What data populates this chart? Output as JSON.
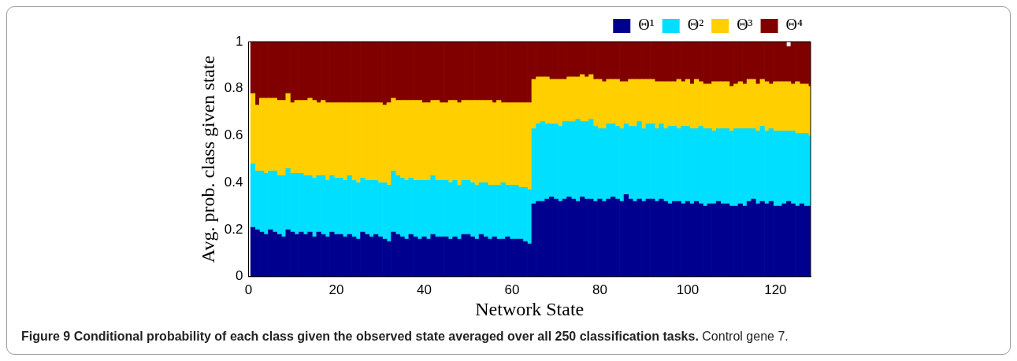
{
  "chart_data": {
    "type": "bar",
    "stacked": true,
    "xlabel": "Network State",
    "ylabel": "Avg. prob. class given state",
    "annotations": [
      "Figure 9 Conditional probability of each class given the observed state averaged over all 250 classification tasks.",
      "Control gene 7."
    ],
    "x": [
      1,
      2,
      3,
      4,
      5,
      6,
      7,
      8,
      9,
      10,
      11,
      12,
      13,
      14,
      15,
      16,
      17,
      18,
      19,
      20,
      21,
      22,
      23,
      24,
      25,
      26,
      27,
      28,
      29,
      30,
      31,
      32,
      33,
      34,
      35,
      36,
      37,
      38,
      39,
      40,
      41,
      42,
      43,
      44,
      45,
      46,
      47,
      48,
      49,
      50,
      51,
      52,
      53,
      54,
      55,
      56,
      57,
      58,
      59,
      60,
      61,
      62,
      63,
      64,
      65,
      66,
      67,
      68,
      69,
      70,
      71,
      72,
      73,
      74,
      75,
      76,
      77,
      78,
      79,
      80,
      81,
      82,
      83,
      84,
      85,
      86,
      87,
      88,
      89,
      90,
      91,
      92,
      93,
      94,
      95,
      96,
      97,
      98,
      99,
      100,
      101,
      102,
      103,
      104,
      105,
      106,
      107,
      108,
      109,
      110,
      111,
      112,
      113,
      114,
      115,
      116,
      117,
      118,
      119,
      120,
      121,
      122,
      123,
      124,
      125,
      126,
      127,
      128
    ],
    "xlim": [
      0,
      128
    ],
    "xticks": [
      0,
      20,
      40,
      60,
      80,
      100,
      120
    ],
    "ylim": [
      0,
      1
    ],
    "yticks": [
      0,
      0.2,
      0.4,
      0.6,
      0.8,
      1
    ],
    "grid": false,
    "legend": "top right",
    "series": [
      {
        "name": "Θ¹",
        "color": "#00008f",
        "values": [
          0.21,
          0.2,
          0.19,
          0.18,
          0.2,
          0.19,
          0.18,
          0.17,
          0.2,
          0.19,
          0.18,
          0.19,
          0.18,
          0.19,
          0.17,
          0.19,
          0.18,
          0.17,
          0.19,
          0.18,
          0.18,
          0.17,
          0.18,
          0.17,
          0.16,
          0.19,
          0.18,
          0.17,
          0.18,
          0.17,
          0.16,
          0.15,
          0.19,
          0.18,
          0.17,
          0.16,
          0.18,
          0.17,
          0.16,
          0.17,
          0.16,
          0.18,
          0.17,
          0.17,
          0.17,
          0.16,
          0.17,
          0.16,
          0.18,
          0.18,
          0.17,
          0.16,
          0.18,
          0.17,
          0.16,
          0.17,
          0.16,
          0.16,
          0.17,
          0.16,
          0.16,
          0.16,
          0.15,
          0.14,
          0.31,
          0.32,
          0.32,
          0.33,
          0.34,
          0.33,
          0.32,
          0.33,
          0.34,
          0.33,
          0.32,
          0.34,
          0.33,
          0.33,
          0.32,
          0.33,
          0.32,
          0.33,
          0.34,
          0.33,
          0.32,
          0.35,
          0.33,
          0.32,
          0.33,
          0.32,
          0.33,
          0.33,
          0.32,
          0.33,
          0.32,
          0.31,
          0.32,
          0.32,
          0.31,
          0.32,
          0.31,
          0.32,
          0.31,
          0.3,
          0.31,
          0.31,
          0.32,
          0.31,
          0.31,
          0.3,
          0.3,
          0.31,
          0.3,
          0.32,
          0.33,
          0.31,
          0.32,
          0.31,
          0.32,
          0.3,
          0.3,
          0.31,
          0.32,
          0.31,
          0.3,
          0.31,
          0.3,
          0.3
        ]
      },
      {
        "name": "Θ²",
        "color": "#00dfff",
        "values": [
          0.27,
          0.25,
          0.26,
          0.26,
          0.25,
          0.26,
          0.25,
          0.26,
          0.26,
          0.25,
          0.26,
          0.25,
          0.25,
          0.24,
          0.25,
          0.24,
          0.25,
          0.24,
          0.24,
          0.24,
          0.24,
          0.24,
          0.25,
          0.24,
          0.24,
          0.23,
          0.23,
          0.24,
          0.23,
          0.23,
          0.24,
          0.24,
          0.26,
          0.25,
          0.25,
          0.25,
          0.24,
          0.24,
          0.25,
          0.24,
          0.25,
          0.25,
          0.24,
          0.24,
          0.24,
          0.24,
          0.24,
          0.23,
          0.23,
          0.23,
          0.23,
          0.23,
          0.22,
          0.23,
          0.23,
          0.22,
          0.23,
          0.24,
          0.22,
          0.23,
          0.23,
          0.22,
          0.23,
          0.23,
          0.32,
          0.33,
          0.34,
          0.32,
          0.31,
          0.32,
          0.32,
          0.33,
          0.32,
          0.33,
          0.35,
          0.32,
          0.33,
          0.34,
          0.32,
          0.3,
          0.31,
          0.32,
          0.31,
          0.31,
          0.31,
          0.3,
          0.31,
          0.32,
          0.33,
          0.31,
          0.32,
          0.32,
          0.31,
          0.32,
          0.31,
          0.33,
          0.32,
          0.31,
          0.33,
          0.32,
          0.32,
          0.31,
          0.33,
          0.33,
          0.32,
          0.31,
          0.31,
          0.32,
          0.32,
          0.32,
          0.33,
          0.32,
          0.33,
          0.31,
          0.3,
          0.31,
          0.32,
          0.31,
          0.31,
          0.32,
          0.32,
          0.31,
          0.3,
          0.31,
          0.31,
          0.3,
          0.31,
          0.3
        ]
      },
      {
        "name": "Θ³",
        "color": "#ffcf00",
        "values": [
          0.3,
          0.28,
          0.31,
          0.32,
          0.31,
          0.31,
          0.32,
          0.32,
          0.32,
          0.3,
          0.31,
          0.31,
          0.32,
          0.33,
          0.33,
          0.31,
          0.32,
          0.33,
          0.31,
          0.32,
          0.32,
          0.33,
          0.31,
          0.33,
          0.34,
          0.32,
          0.33,
          0.33,
          0.33,
          0.34,
          0.33,
          0.35,
          0.31,
          0.32,
          0.33,
          0.34,
          0.33,
          0.34,
          0.34,
          0.33,
          0.33,
          0.32,
          0.34,
          0.33,
          0.33,
          0.35,
          0.34,
          0.35,
          0.34,
          0.34,
          0.35,
          0.36,
          0.35,
          0.35,
          0.36,
          0.35,
          0.36,
          0.34,
          0.35,
          0.35,
          0.35,
          0.36,
          0.36,
          0.37,
          0.21,
          0.2,
          0.19,
          0.2,
          0.19,
          0.19,
          0.2,
          0.18,
          0.19,
          0.19,
          0.18,
          0.2,
          0.19,
          0.19,
          0.2,
          0.21,
          0.2,
          0.19,
          0.19,
          0.2,
          0.2,
          0.18,
          0.2,
          0.2,
          0.18,
          0.21,
          0.19,
          0.19,
          0.2,
          0.18,
          0.2,
          0.19,
          0.19,
          0.21,
          0.19,
          0.2,
          0.19,
          0.21,
          0.19,
          0.19,
          0.19,
          0.21,
          0.2,
          0.2,
          0.2,
          0.19,
          0.19,
          0.2,
          0.19,
          0.21,
          0.21,
          0.2,
          0.2,
          0.21,
          0.19,
          0.21,
          0.21,
          0.21,
          0.21,
          0.2,
          0.22,
          0.21,
          0.21,
          0.21
        ]
      },
      {
        "name": "Θ⁴",
        "color": "#800000",
        "values": [
          0.22,
          0.27,
          0.24,
          0.24,
          0.24,
          0.24,
          0.25,
          0.25,
          0.22,
          0.26,
          0.25,
          0.25,
          0.25,
          0.24,
          0.25,
          0.26,
          0.25,
          0.26,
          0.26,
          0.26,
          0.26,
          0.26,
          0.26,
          0.26,
          0.26,
          0.26,
          0.26,
          0.26,
          0.26,
          0.26,
          0.27,
          0.26,
          0.24,
          0.25,
          0.25,
          0.25,
          0.25,
          0.25,
          0.25,
          0.26,
          0.26,
          0.25,
          0.25,
          0.26,
          0.26,
          0.25,
          0.25,
          0.26,
          0.25,
          0.25,
          0.25,
          0.25,
          0.25,
          0.25,
          0.25,
          0.26,
          0.25,
          0.26,
          0.26,
          0.26,
          0.26,
          0.26,
          0.26,
          0.26,
          0.16,
          0.15,
          0.15,
          0.15,
          0.16,
          0.16,
          0.16,
          0.16,
          0.15,
          0.15,
          0.15,
          0.14,
          0.15,
          0.14,
          0.16,
          0.16,
          0.17,
          0.16,
          0.16,
          0.16,
          0.17,
          0.17,
          0.16,
          0.16,
          0.16,
          0.16,
          0.16,
          0.16,
          0.17,
          0.17,
          0.17,
          0.17,
          0.17,
          0.16,
          0.17,
          0.16,
          0.18,
          0.16,
          0.17,
          0.18,
          0.18,
          0.17,
          0.17,
          0.17,
          0.17,
          0.19,
          0.18,
          0.17,
          0.18,
          0.16,
          0.16,
          0.18,
          0.16,
          0.17,
          0.18,
          0.17,
          0.17,
          0.17,
          0.15,
          0.18,
          0.17,
          0.18,
          0.18,
          0.19
        ]
      }
    ]
  }
}
